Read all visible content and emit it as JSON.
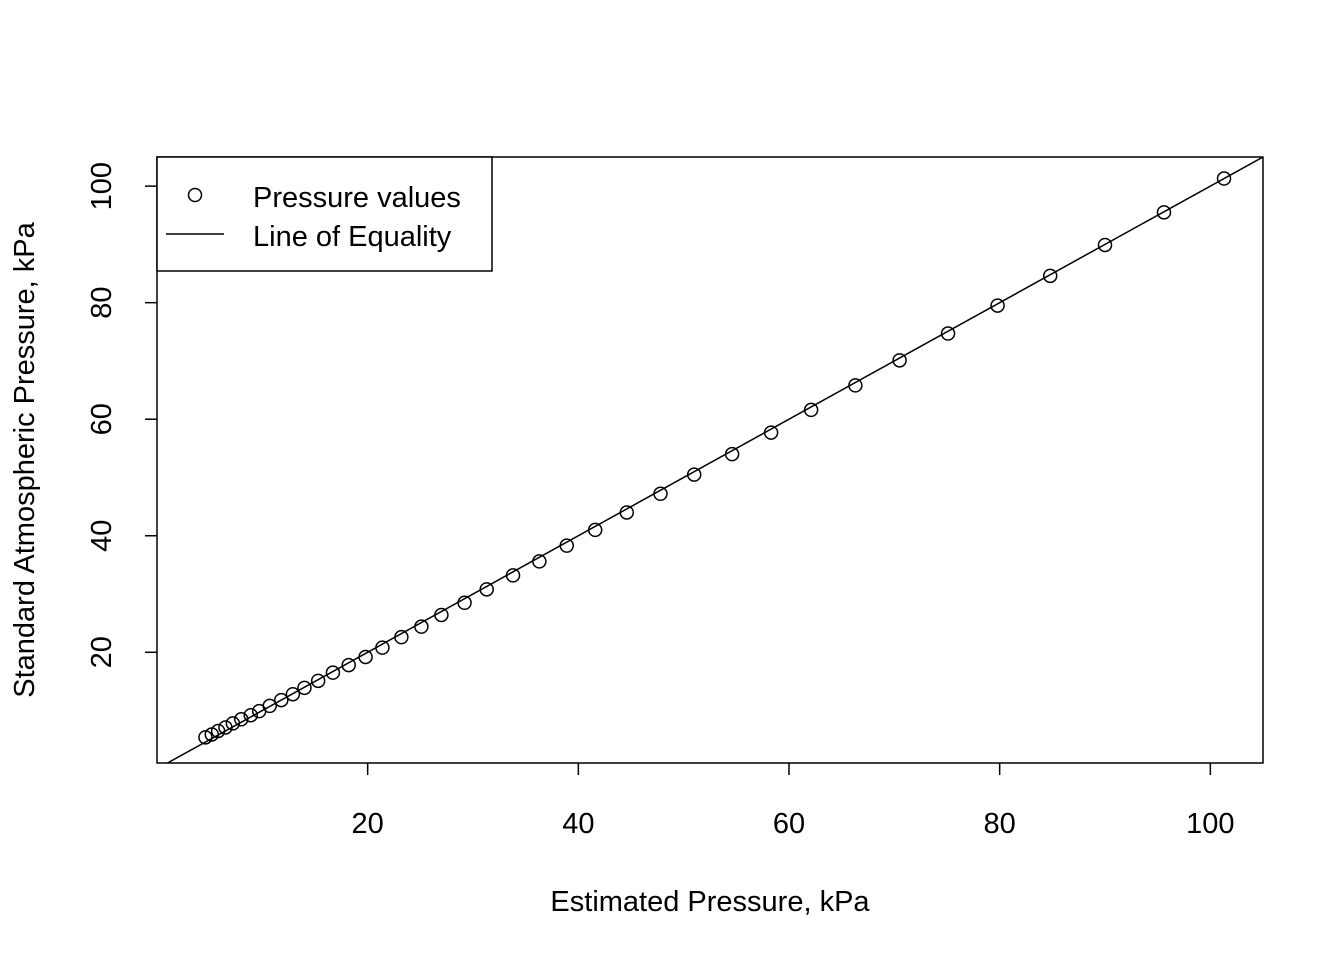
{
  "chart_data": {
    "type": "scatter",
    "title": "",
    "xlabel": "Estimated Pressure, kPa",
    "ylabel": "Standard Atmospheric Pressure, kPa",
    "xlim": [
      0.0,
      105.0
    ],
    "ylim": [
      1.0,
      105.0
    ],
    "x_ticks": [
      20,
      40,
      60,
      80,
      100
    ],
    "y_ticks": [
      20,
      40,
      60,
      80,
      100
    ],
    "x_tick_labels": [
      "20",
      "40",
      "60",
      "80",
      "100"
    ],
    "y_tick_labels": [
      "20",
      "40",
      "60",
      "80",
      "100"
    ],
    "legend": {
      "position": "top-left",
      "entries": [
        {
          "label": "Pressure values",
          "symbol": "circle"
        },
        {
          "label": "Line of Equality",
          "symbol": "line"
        }
      ]
    },
    "reference_line": {
      "name": "Line of Equality",
      "intercept": 0,
      "slope": 1
    },
    "series": [
      {
        "name": "Pressure values",
        "x": [
          101.3,
          95.6,
          90.0,
          84.8,
          79.8,
          75.1,
          70.5,
          66.3,
          62.1,
          58.3,
          54.6,
          51.0,
          47.8,
          44.6,
          41.6,
          38.9,
          36.3,
          33.8,
          31.3,
          29.2,
          27.0,
          25.1,
          23.2,
          21.4,
          19.8,
          18.2,
          16.7,
          15.3,
          14.0,
          12.9,
          11.8,
          10.7,
          9.7,
          8.9,
          8.0,
          7.2,
          6.5,
          5.8,
          5.2,
          4.6
        ],
        "y": [
          101.3,
          95.5,
          89.9,
          84.6,
          79.5,
          74.7,
          70.1,
          65.8,
          61.6,
          57.7,
          54.0,
          50.5,
          47.2,
          44.0,
          41.0,
          38.3,
          35.6,
          33.2,
          30.8,
          28.5,
          26.4,
          24.4,
          22.6,
          20.8,
          19.2,
          17.8,
          16.5,
          15.1,
          13.9,
          12.8,
          11.8,
          10.8,
          9.9,
          9.2,
          8.5,
          7.8,
          7.1,
          6.5,
          5.9,
          5.4
        ]
      }
    ]
  }
}
